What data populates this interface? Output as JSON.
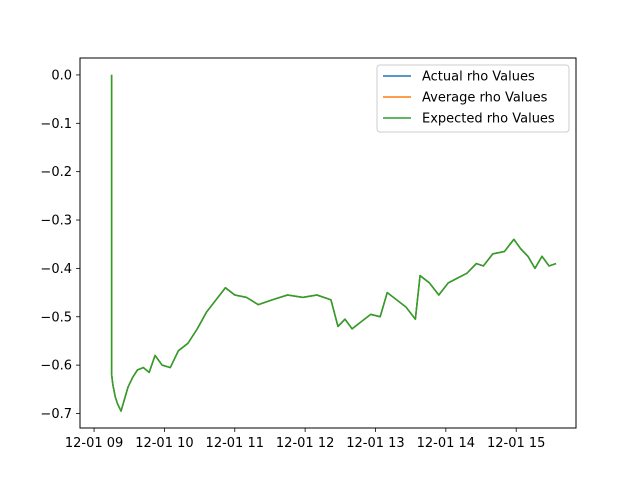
{
  "chart_data": {
    "type": "line",
    "x_type": "datetime",
    "xlim": [
      "2024-12-01 08:48",
      "2024-12-01 15:51"
    ],
    "ylim": [
      -0.73,
      0.035
    ],
    "x_ticks": [
      {
        "value": "2024-12-01 09:00",
        "label": "12-01 09"
      },
      {
        "value": "2024-12-01 10:00",
        "label": "12-01 10"
      },
      {
        "value": "2024-12-01 11:00",
        "label": "12-01 11"
      },
      {
        "value": "2024-12-01 12:00",
        "label": "12-01 12"
      },
      {
        "value": "2024-12-01 13:00",
        "label": "12-01 13"
      },
      {
        "value": "2024-12-01 14:00",
        "label": "12-01 14"
      },
      {
        "value": "2024-12-01 15:00",
        "label": "12-01 15"
      }
    ],
    "y_ticks": [
      {
        "value": 0.0,
        "label": "0.0"
      },
      {
        "value": -0.1,
        "label": "−0.1"
      },
      {
        "value": -0.2,
        "label": "−0.2"
      },
      {
        "value": -0.3,
        "label": "−0.3"
      },
      {
        "value": -0.4,
        "label": "−0.4"
      },
      {
        "value": -0.5,
        "label": "−0.5"
      },
      {
        "value": -0.6,
        "label": "−0.6"
      },
      {
        "value": -0.7,
        "label": "−0.7"
      }
    ],
    "title": "",
    "xlabel": "",
    "ylabel": "",
    "grid": false,
    "legend_position": "upper right",
    "series": [
      {
        "name": "Actual rho Values",
        "color": "#1f77b4",
        "x": [
          "2024-12-01 09:15",
          "2024-12-01 09:15",
          "2024-12-01 09:15",
          "2024-12-01 09:16",
          "2024-12-01 09:18",
          "2024-12-01 09:20",
          "2024-12-01 09:23",
          "2024-12-01 09:26",
          "2024-12-01 09:29",
          "2024-12-01 09:33",
          "2024-12-01 09:37",
          "2024-12-01 09:42",
          "2024-12-01 09:47",
          "2024-12-01 09:52",
          "2024-12-01 09:58",
          "2024-12-01 10:05",
          "2024-12-01 10:12",
          "2024-12-01 10:20",
          "2024-12-01 10:28",
          "2024-12-01 10:36",
          "2024-12-01 10:44",
          "2024-12-01 10:52",
          "2024-12-01 11:00",
          "2024-12-01 11:10",
          "2024-12-01 11:20",
          "2024-12-01 11:32",
          "2024-12-01 11:45",
          "2024-12-01 11:58",
          "2024-12-01 12:10",
          "2024-12-01 12:22",
          "2024-12-01 12:28",
          "2024-12-01 12:34",
          "2024-12-01 12:40",
          "2024-12-01 12:48",
          "2024-12-01 12:56",
          "2024-12-01 13:04",
          "2024-12-01 13:10",
          "2024-12-01 13:18",
          "2024-12-01 13:26",
          "2024-12-01 13:34",
          "2024-12-01 13:38",
          "2024-12-01 13:46",
          "2024-12-01 13:54",
          "2024-12-01 14:02",
          "2024-12-01 14:10",
          "2024-12-01 14:18",
          "2024-12-01 14:26",
          "2024-12-01 14:32",
          "2024-12-01 14:40",
          "2024-12-01 14:50",
          "2024-12-01 14:58",
          "2024-12-01 15:04",
          "2024-12-01 15:10",
          "2024-12-01 15:16",
          "2024-12-01 15:22",
          "2024-12-01 15:28",
          "2024-12-01 15:34"
        ],
        "y": [
          0.0,
          -0.565,
          -0.62,
          -0.64,
          -0.665,
          -0.68,
          -0.695,
          -0.67,
          -0.645,
          -0.625,
          -0.61,
          -0.605,
          -0.615,
          -0.58,
          -0.6,
          -0.605,
          -0.57,
          -0.555,
          -0.525,
          -0.49,
          -0.465,
          -0.44,
          -0.455,
          -0.46,
          -0.475,
          -0.465,
          -0.455,
          -0.46,
          -0.455,
          -0.465,
          -0.52,
          -0.505,
          -0.525,
          -0.51,
          -0.495,
          -0.5,
          -0.45,
          -0.465,
          -0.48,
          -0.505,
          -0.415,
          -0.43,
          -0.455,
          -0.43,
          -0.42,
          -0.41,
          -0.39,
          -0.395,
          -0.37,
          -0.365,
          -0.34,
          -0.36,
          -0.375,
          -0.4,
          -0.375,
          -0.395,
          -0.39
        ]
      },
      {
        "name": "Average rho Values",
        "color": "#ff7f0e",
        "x": [
          "2024-12-01 09:15",
          "2024-12-01 09:15",
          "2024-12-01 09:15",
          "2024-12-01 09:16",
          "2024-12-01 09:18",
          "2024-12-01 09:20",
          "2024-12-01 09:23",
          "2024-12-01 09:26",
          "2024-12-01 09:29",
          "2024-12-01 09:33",
          "2024-12-01 09:37",
          "2024-12-01 09:42",
          "2024-12-01 09:47",
          "2024-12-01 09:52",
          "2024-12-01 09:58",
          "2024-12-01 10:05",
          "2024-12-01 10:12",
          "2024-12-01 10:20",
          "2024-12-01 10:28",
          "2024-12-01 10:36",
          "2024-12-01 10:44",
          "2024-12-01 10:52",
          "2024-12-01 11:00",
          "2024-12-01 11:10",
          "2024-12-01 11:20",
          "2024-12-01 11:32",
          "2024-12-01 11:45",
          "2024-12-01 11:58",
          "2024-12-01 12:10",
          "2024-12-01 12:22",
          "2024-12-01 12:28",
          "2024-12-01 12:34",
          "2024-12-01 12:40",
          "2024-12-01 12:48",
          "2024-12-01 12:56",
          "2024-12-01 13:04",
          "2024-12-01 13:10",
          "2024-12-01 13:18",
          "2024-12-01 13:26",
          "2024-12-01 13:34",
          "2024-12-01 13:38",
          "2024-12-01 13:46",
          "2024-12-01 13:54",
          "2024-12-01 14:02",
          "2024-12-01 14:10",
          "2024-12-01 14:18",
          "2024-12-01 14:26",
          "2024-12-01 14:32",
          "2024-12-01 14:40",
          "2024-12-01 14:50",
          "2024-12-01 14:58",
          "2024-12-01 15:04",
          "2024-12-01 15:10",
          "2024-12-01 15:16",
          "2024-12-01 15:22",
          "2024-12-01 15:28",
          "2024-12-01 15:34"
        ],
        "y": [
          0.0,
          -0.565,
          -0.62,
          -0.64,
          -0.665,
          -0.68,
          -0.695,
          -0.67,
          -0.645,
          -0.625,
          -0.61,
          -0.605,
          -0.615,
          -0.58,
          -0.6,
          -0.605,
          -0.57,
          -0.555,
          -0.525,
          -0.49,
          -0.465,
          -0.44,
          -0.455,
          -0.46,
          -0.475,
          -0.465,
          -0.455,
          -0.46,
          -0.455,
          -0.465,
          -0.52,
          -0.505,
          -0.525,
          -0.51,
          -0.495,
          -0.5,
          -0.45,
          -0.465,
          -0.48,
          -0.505,
          -0.415,
          -0.43,
          -0.455,
          -0.43,
          -0.42,
          -0.41,
          -0.39,
          -0.395,
          -0.37,
          -0.365,
          -0.34,
          -0.36,
          -0.375,
          -0.4,
          -0.375,
          -0.395,
          -0.39
        ]
      },
      {
        "name": "Expected rho Values",
        "color": "#2ca02c",
        "x": [
          "2024-12-01 09:15",
          "2024-12-01 09:15",
          "2024-12-01 09:15",
          "2024-12-01 09:16",
          "2024-12-01 09:18",
          "2024-12-01 09:20",
          "2024-12-01 09:23",
          "2024-12-01 09:26",
          "2024-12-01 09:29",
          "2024-12-01 09:33",
          "2024-12-01 09:37",
          "2024-12-01 09:42",
          "2024-12-01 09:47",
          "2024-12-01 09:52",
          "2024-12-01 09:58",
          "2024-12-01 10:05",
          "2024-12-01 10:12",
          "2024-12-01 10:20",
          "2024-12-01 10:28",
          "2024-12-01 10:36",
          "2024-12-01 10:44",
          "2024-12-01 10:52",
          "2024-12-01 11:00",
          "2024-12-01 11:10",
          "2024-12-01 11:20",
          "2024-12-01 11:32",
          "2024-12-01 11:45",
          "2024-12-01 11:58",
          "2024-12-01 12:10",
          "2024-12-01 12:22",
          "2024-12-01 12:28",
          "2024-12-01 12:34",
          "2024-12-01 12:40",
          "2024-12-01 12:48",
          "2024-12-01 12:56",
          "2024-12-01 13:04",
          "2024-12-01 13:10",
          "2024-12-01 13:18",
          "2024-12-01 13:26",
          "2024-12-01 13:34",
          "2024-12-01 13:38",
          "2024-12-01 13:46",
          "2024-12-01 13:54",
          "2024-12-01 14:02",
          "2024-12-01 14:10",
          "2024-12-01 14:18",
          "2024-12-01 14:26",
          "2024-12-01 14:32",
          "2024-12-01 14:40",
          "2024-12-01 14:50",
          "2024-12-01 14:58",
          "2024-12-01 15:04",
          "2024-12-01 15:10",
          "2024-12-01 15:16",
          "2024-12-01 15:22",
          "2024-12-01 15:28",
          "2024-12-01 15:34"
        ],
        "y": [
          0.0,
          -0.565,
          -0.62,
          -0.64,
          -0.665,
          -0.68,
          -0.695,
          -0.67,
          -0.645,
          -0.625,
          -0.61,
          -0.605,
          -0.615,
          -0.58,
          -0.6,
          -0.605,
          -0.57,
          -0.555,
          -0.525,
          -0.49,
          -0.465,
          -0.44,
          -0.455,
          -0.46,
          -0.475,
          -0.465,
          -0.455,
          -0.46,
          -0.455,
          -0.465,
          -0.52,
          -0.505,
          -0.525,
          -0.51,
          -0.495,
          -0.5,
          -0.45,
          -0.465,
          -0.48,
          -0.505,
          -0.415,
          -0.43,
          -0.455,
          -0.43,
          -0.42,
          -0.41,
          -0.39,
          -0.395,
          -0.37,
          -0.365,
          -0.34,
          -0.36,
          -0.375,
          -0.4,
          -0.375,
          -0.395,
          -0.39
        ]
      }
    ]
  }
}
